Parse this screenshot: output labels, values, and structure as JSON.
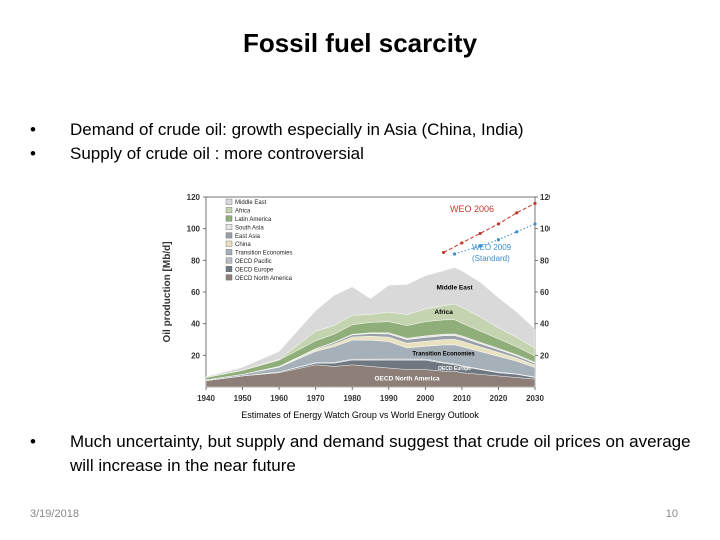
{
  "slide": {
    "title": "Fossil fuel scarcity",
    "bullets": [
      "Demand of crude oil: growth especially in Asia (China, India)",
      "Supply of crude oil : more controversial"
    ],
    "bullet_bottom": "Much uncertainty, but supply and demand suggest that crude oil prices on average will increase in the near future",
    "bullet_char": "•",
    "date": "3/19/2018",
    "page": "10",
    "caption": "Estimates of Energy Watch Group vs World Energy Outlook"
  },
  "chart_data": {
    "type": "area",
    "ylabel": "Oil production [Mb/d]",
    "ylim": [
      0,
      120
    ],
    "xlim": [
      1940,
      2030
    ],
    "x_ticks": [
      "1940",
      "1950",
      "1960",
      "1970",
      "1980",
      "1990",
      "2000",
      "2010",
      "2020",
      "2030"
    ],
    "y_ticks": [
      "20",
      "40",
      "60",
      "80",
      "100",
      "120"
    ],
    "x": [
      1940,
      1950,
      1960,
      1970,
      1975,
      1980,
      1985,
      1990,
      1995,
      2000,
      2005,
      2008,
      2010,
      2015,
      2020,
      2025,
      2030
    ],
    "legend": [
      {
        "name": "Middle East",
        "color": "#d9d9d9"
      },
      {
        "name": "Africa",
        "color": "#c5d4b0"
      },
      {
        "name": "Latin America",
        "color": "#8fae7a"
      },
      {
        "name": "South Asia",
        "color": "#e6e6e6"
      },
      {
        "name": "East Asia",
        "color": "#9aa0a8"
      },
      {
        "name": "China",
        "color": "#e9e2c0"
      },
      {
        "name": "Transition Economies",
        "color": "#a6b0b8"
      },
      {
        "name": "OECD Pacific",
        "color": "#b7bcc2"
      },
      {
        "name": "OECD Europe",
        "color": "#6f7780"
      },
      {
        "name": "OECD North America",
        "color": "#8d7f78"
      }
    ],
    "series": [
      {
        "name": "OECD North America",
        "color": "#8d7f78",
        "label": "OECD North America",
        "values": [
          4,
          7,
          9,
          14,
          13,
          14,
          13,
          12,
          11,
          11,
          10,
          10,
          9,
          8,
          7,
          6,
          5
        ]
      },
      {
        "name": "OECD Europe",
        "color": "#6f7780",
        "label": "OECD Europe",
        "values": [
          0,
          0,
          0.5,
          1,
          2,
          3,
          4,
          5,
          6,
          6,
          5,
          4,
          4,
          3,
          2,
          2,
          1
        ]
      },
      {
        "name": "OECD Pacific",
        "color": "#b7bcc2",
        "label": "",
        "values": [
          0,
          0,
          0,
          0.5,
          0.5,
          0.6,
          0.6,
          0.7,
          0.7,
          0.7,
          0.6,
          0.6,
          0.5,
          0.4,
          0.4,
          0.3,
          0.3
        ]
      },
      {
        "name": "Transition Economies",
        "color": "#a6b0b8",
        "label": "Transition Economies",
        "values": [
          0.5,
          1,
          3,
          7,
          10,
          12,
          12,
          11,
          7,
          8,
          11,
          12,
          12,
          11,
          10,
          8,
          6
        ]
      },
      {
        "name": "China",
        "color": "#e9e2c0",
        "label": "",
        "values": [
          0,
          0,
          0.2,
          1,
          1.5,
          2,
          2.5,
          2.8,
          3,
          3.2,
          3.4,
          3.5,
          3.5,
          3,
          2.5,
          2,
          1.6
        ]
      },
      {
        "name": "East Asia",
        "color": "#9aa0a8",
        "label": "",
        "values": [
          0,
          0,
          0.2,
          0.5,
          1,
          1.3,
          1.6,
          2,
          2.2,
          2.4,
          2.4,
          2.4,
          2.3,
          2,
          1.7,
          1.4,
          1.1
        ]
      },
      {
        "name": "South Asia",
        "color": "#e6e6e6",
        "label": "",
        "values": [
          0,
          0,
          0.1,
          0.2,
          0.3,
          0.4,
          0.6,
          0.8,
          0.9,
          1,
          1,
          1,
          1,
          0.9,
          0.8,
          0.7,
          0.6
        ]
      },
      {
        "name": "Latin America",
        "color": "#8fae7a",
        "label": "",
        "values": [
          1.5,
          2.5,
          4,
          5,
          5,
          6,
          6.5,
          7,
          8,
          9,
          9,
          9,
          8,
          7,
          6,
          5,
          4
        ]
      },
      {
        "name": "Africa",
        "color": "#c5d4b0",
        "label": "Africa",
        "values": [
          0,
          0,
          0.5,
          6,
          5.5,
          6,
          5,
          6,
          7,
          8,
          9,
          10,
          10,
          9,
          7,
          6,
          5
        ]
      },
      {
        "name": "Middle East",
        "color": "#d9d9d9",
        "label": "Middle East",
        "values": [
          0.5,
          2,
          5,
          13,
          19,
          18,
          10,
          17,
          19,
          21,
          22,
          23,
          23,
          22,
          19,
          16,
          12
        ]
      }
    ],
    "projections": [
      {
        "name": "WEO 2006",
        "color": "#c0392b",
        "style": "dashed",
        "x": [
          2005,
          2010,
          2015,
          2020,
          2025,
          2030
        ],
        "values": [
          85,
          91,
          97,
          103,
          110,
          116
        ]
      },
      {
        "name": "WEO 2009 (Standard)",
        "color": "#3a8fd1",
        "style": "dotted",
        "x": [
          2008,
          2015,
          2020,
          2025,
          2030
        ],
        "values": [
          84,
          89,
          93,
          98,
          103
        ]
      }
    ],
    "annotations": [
      {
        "text": "WEO 2006",
        "color": "#c0392b"
      },
      {
        "text": "WEO 2009",
        "color": "#3a8fd1"
      },
      {
        "text": "(Standard)",
        "color": "#3a8fd1"
      }
    ]
  }
}
